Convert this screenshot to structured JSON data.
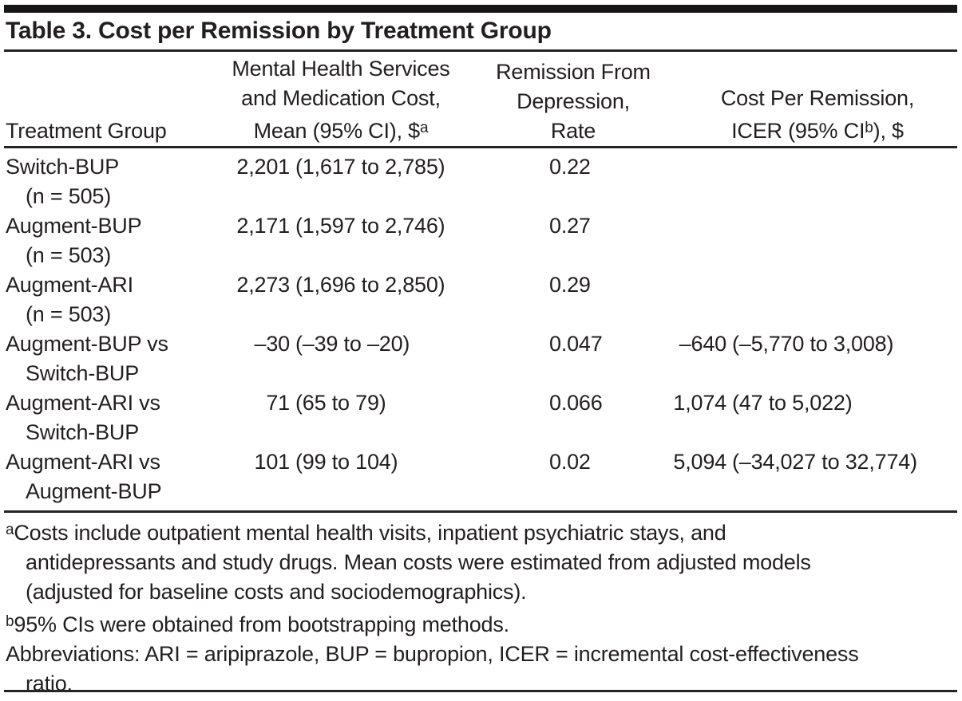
{
  "title": "Table 3. Cost per Remission by Treatment Group",
  "columns": {
    "col1": {
      "label": "Treatment Group"
    },
    "col2": {
      "line1": "Mental Health Services",
      "line2": "and Medication Cost,",
      "line3_pre": "Mean (95% CI), $",
      "line3_sup": "a"
    },
    "col3": {
      "line1": "Remission From",
      "line2": "Depression,",
      "line3": "Rate"
    },
    "col4": {
      "line1": "Cost Per Remission,",
      "line2_pre": "ICER (95% CI",
      "line2_sup": "b",
      "line2_post": "), $"
    }
  },
  "rows": [
    {
      "group_line1": "Switch-BUP",
      "group_line2": "(n = 505)",
      "cost_num": "2,201",
      "cost_ci": "(1,617 to 2,785)",
      "rate": "0.22",
      "icer_num": "",
      "icer_ci": ""
    },
    {
      "group_line1": "Augment-BUP",
      "group_line2": "(n = 503)",
      "cost_num": "2,171",
      "cost_ci": "(1,597 to 2,746)",
      "rate": "0.27",
      "icer_num": "",
      "icer_ci": ""
    },
    {
      "group_line1": "Augment-ARI",
      "group_line2": "(n = 503)",
      "cost_num": "2,273",
      "cost_ci": "(1,696 to 2,850)",
      "rate": "0.29",
      "icer_num": "",
      "icer_ci": ""
    },
    {
      "group_line1": "Augment-BUP vs",
      "group_line2": "Switch-BUP",
      "cost_num": "–30",
      "cost_ci": "(–39 to –20)",
      "rate": "0.047",
      "icer_num": "–640",
      "icer_ci": "(–5,770 to 3,008)"
    },
    {
      "group_line1": "Augment-ARI vs",
      "group_line2": "Switch-BUP",
      "cost_num": "71",
      "cost_ci": "(65 to 79)",
      "rate": "0.066",
      "icer_num": "1,074",
      "icer_ci": "(47 to 5,022)"
    },
    {
      "group_line1": "Augment-ARI vs",
      "group_line2": "Augment-BUP",
      "cost_num": "101",
      "cost_ci": "(99 to 104)",
      "rate": "0.02",
      "icer_num": "5,094",
      "icer_ci": "(–34,027 to 32,774)"
    }
  ],
  "footnotes": {
    "a_sup": "a",
    "a_line1": "Costs include outpatient mental health visits, inpatient psychiatric stays, and",
    "a_line2": "antidepressants and study drugs. Mean costs were estimated from adjusted models",
    "a_line3": "(adjusted for baseline costs and sociodemographics).",
    "b_sup": "b",
    "b_line1": "95% CIs were obtained from bootstrapping methods.",
    "abbrev_line1": "Abbreviations: ARI = aripiprazole, BUP = bupropion, ICER = incremental cost-effectiveness",
    "abbrev_line2": "ratio."
  }
}
